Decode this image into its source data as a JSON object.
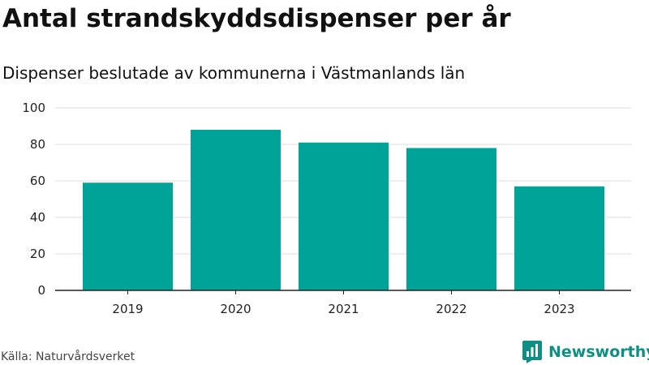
{
  "header": {
    "title": "Antal strandskyddsdispenser per år",
    "subtitle": "Dispenser beslutade av kommunerna i Västmanlands län"
  },
  "footer": {
    "source": "Källa: Naturvårdsverket",
    "brand": "Newsworthy",
    "brand_icon": "newsworthy-logo-icon"
  },
  "colors": {
    "bar": "#00a398",
    "grid": "#dddddd",
    "axis": "#222222",
    "brand": "#0f8f84"
  },
  "chart_data": {
    "type": "bar",
    "title": "Antal strandskyddsdispenser per år",
    "subtitle": "Dispenser beslutade av kommunerna i Västmanlands län",
    "categories": [
      "2019",
      "2020",
      "2021",
      "2022",
      "2023"
    ],
    "values": [
      59,
      88,
      81,
      78,
      57
    ],
    "ylim": [
      0,
      100
    ],
    "yticks": [
      0,
      20,
      40,
      60,
      80,
      100
    ],
    "xlabel": "",
    "ylabel": "",
    "grid": true,
    "legend": "none"
  }
}
